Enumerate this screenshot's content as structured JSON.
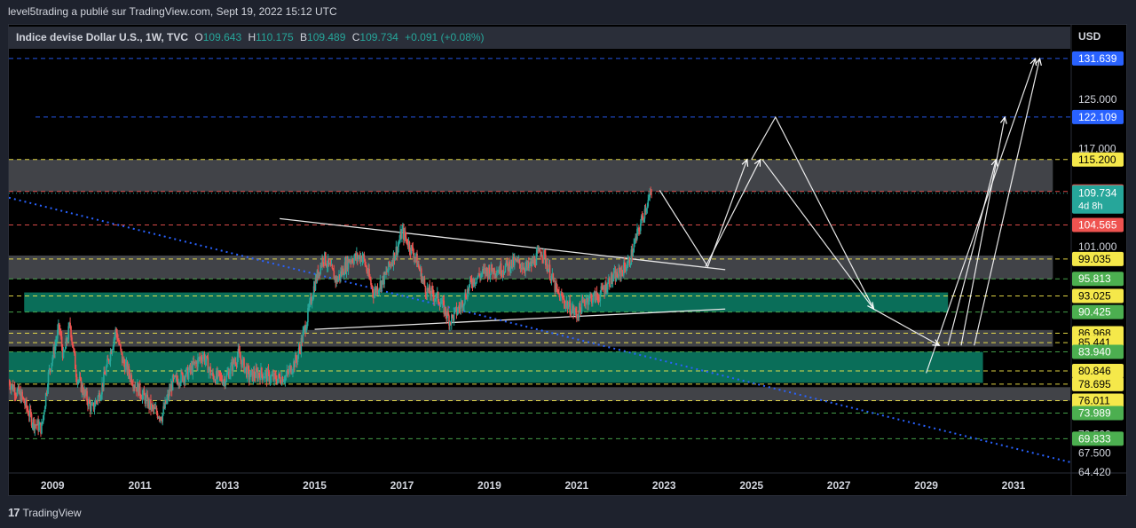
{
  "header": {
    "publisher_line": "level5trading a publié sur TradingView.com, Sept 19, 2022 15:12 UTC"
  },
  "legend": {
    "symbol": "Indice devise Dollar U.S., 1W, TVC",
    "open_label": "O",
    "open": "109.643",
    "high_label": "H",
    "high": "110.175",
    "low_label": "B",
    "low": "109.489",
    "close_label": "C",
    "close": "109.734",
    "change": "+0.091 (+0.08%)"
  },
  "axis": {
    "currency": "USD"
  },
  "footer": {
    "logo_mark": "17",
    "brand": "TradingView"
  },
  "colors": {
    "background": "#000000",
    "up": "#26a69a",
    "down": "#ef5350",
    "zone_gray": "#5d5f66",
    "zone_teal": "#0b7a63",
    "level_yellow": "#f5e84a",
    "level_green": "#4caf50",
    "level_red": "#ef5350",
    "level_blue": "#2962ff"
  },
  "chart_data": {
    "type": "candlestick",
    "interval": "1W",
    "ylim": [
      64.4,
      133.2
    ],
    "xlim": [
      2008.0,
      2032.3
    ],
    "x_ticks": [
      "2009",
      "2011",
      "2013",
      "2015",
      "2017",
      "2019",
      "2021",
      "2023",
      "2025",
      "2027",
      "2029",
      "2031"
    ],
    "y_ticks": [
      "125.000",
      "117.000",
      "101.000",
      "67.500"
    ],
    "partial_ticks": [
      "70.500",
      "64.420"
    ],
    "price_path": [
      [
        2008.0,
        79.0
      ],
      [
        2008.3,
        76.5
      ],
      [
        2008.55,
        72.5
      ],
      [
        2008.75,
        71.5
      ],
      [
        2008.9,
        80.0
      ],
      [
        2009.15,
        88.0
      ],
      [
        2009.25,
        83.0
      ],
      [
        2009.4,
        88.5
      ],
      [
        2009.55,
        80.0
      ],
      [
        2009.9,
        74.5
      ],
      [
        2010.1,
        77.5
      ],
      [
        2010.45,
        87.5
      ],
      [
        2010.6,
        82.5
      ],
      [
        2010.9,
        78.5
      ],
      [
        2011.3,
        74.5
      ],
      [
        2011.5,
        73.5
      ],
      [
        2011.75,
        79.0
      ],
      [
        2012.1,
        80.5
      ],
      [
        2012.45,
        83.5
      ],
      [
        2012.65,
        80.0
      ],
      [
        2012.95,
        79.5
      ],
      [
        2013.25,
        83.5
      ],
      [
        2013.5,
        80.0
      ],
      [
        2013.75,
        80.5
      ],
      [
        2014.1,
        79.5
      ],
      [
        2014.35,
        80.0
      ],
      [
        2014.6,
        83.0
      ],
      [
        2014.8,
        88.5
      ],
      [
        2015.0,
        95.0
      ],
      [
        2015.2,
        99.5
      ],
      [
        2015.5,
        95.5
      ],
      [
        2015.8,
        99.0
      ],
      [
        2016.1,
        99.5
      ],
      [
        2016.35,
        93.5
      ],
      [
        2016.6,
        96.0
      ],
      [
        2016.9,
        101.0
      ],
      [
        2017.0,
        103.5
      ],
      [
        2017.3,
        99.5
      ],
      [
        2017.55,
        94.0
      ],
      [
        2017.85,
        92.5
      ],
      [
        2018.1,
        89.0
      ],
      [
        2018.35,
        91.5
      ],
      [
        2018.6,
        95.5
      ],
      [
        2018.9,
        97.0
      ],
      [
        2019.3,
        97.5
      ],
      [
        2019.6,
        98.5
      ],
      [
        2019.9,
        97.5
      ],
      [
        2020.2,
        100.5
      ],
      [
        2020.35,
        97.5
      ],
      [
        2020.55,
        93.5
      ],
      [
        2020.8,
        91.5
      ],
      [
        2021.0,
        90.0
      ],
      [
        2021.2,
        92.5
      ],
      [
        2021.5,
        93.0
      ],
      [
        2021.75,
        95.5
      ],
      [
        2021.95,
        96.5
      ],
      [
        2022.2,
        98.5
      ],
      [
        2022.45,
        104.5
      ],
      [
        2022.6,
        108.0
      ],
      [
        2022.72,
        109.73
      ]
    ],
    "zones": [
      {
        "kind": "gray",
        "from": 110.013,
        "to": 115.2,
        "x_end": 2031.9
      },
      {
        "kind": "gray",
        "from": 95.813,
        "to": 99.6,
        "x_end": 2031.9
      },
      {
        "kind": "teal",
        "from": 90.425,
        "to": 93.6,
        "x_start": 2008.35,
        "x_end": 2029.5
      },
      {
        "kind": "gray",
        "from": 84.8,
        "to": 87.5,
        "x_end": 2031.9
      },
      {
        "kind": "teal",
        "from": 78.9,
        "to": 83.94,
        "x_end": 2030.3
      },
      {
        "kind": "gray",
        "from": 76.011,
        "to": 78.2,
        "x_end": 2032.3
      }
    ],
    "levels": [
      {
        "value": 131.639,
        "label": "131.639",
        "color": "blue",
        "badge_text": "#ffffff"
      },
      {
        "value": 122.109,
        "label": "122.109",
        "color": "blue",
        "badge_text": "#ffffff"
      },
      {
        "value": 115.2,
        "label": "115.200",
        "color": "yellow",
        "badge_text": "#000000"
      },
      {
        "value": 110.013,
        "label": "110.013",
        "color": "red",
        "badge_text": "#ffffff"
      },
      {
        "value": 104.565,
        "label": "104.565",
        "color": "red",
        "badge_text": "#ffffff"
      },
      {
        "value": 99.035,
        "label": "99.035",
        "color": "yellow",
        "badge_text": "#000000"
      },
      {
        "value": 95.813,
        "label": "95.813",
        "color": "green",
        "badge_text": "#ffffff"
      },
      {
        "value": 93.025,
        "label": "93.025",
        "color": "yellow",
        "badge_text": "#000000"
      },
      {
        "value": 90.425,
        "label": "90.425",
        "color": "green",
        "badge_text": "#ffffff"
      },
      {
        "value": 86.968,
        "label": "86.968",
        "color": "yellow",
        "badge_text": "#000000"
      },
      {
        "value": 85.441,
        "label": "85.441",
        "color": "yellow",
        "badge_text": "#000000"
      },
      {
        "value": 83.94,
        "label": "83.940",
        "color": "green",
        "badge_text": "#ffffff"
      },
      {
        "value": 80.846,
        "label": "80.846",
        "color": "yellow",
        "badge_text": "#000000"
      },
      {
        "value": 78.695,
        "label": "78.695",
        "color": "yellow",
        "badge_text": "#000000"
      },
      {
        "value": 76.011,
        "label": "76.011",
        "color": "yellow",
        "badge_text": "#000000"
      },
      {
        "value": 73.989,
        "label": "73.989",
        "color": "green",
        "badge_text": "#ffffff"
      },
      {
        "value": 69.833,
        "label": "69.833",
        "color": "green",
        "badge_text": "#ffffff"
      }
    ],
    "current_price": {
      "value": 109.734,
      "label": "109.734",
      "countdown": "4d 8h"
    },
    "trendlines": [
      {
        "style": "solid",
        "color": "white",
        "points": [
          [
            2014.2,
            105.6
          ],
          [
            2024.4,
            97.3
          ]
        ]
      },
      {
        "style": "solid",
        "color": "white",
        "points": [
          [
            2015.0,
            87.6
          ],
          [
            2024.4,
            90.9
          ]
        ]
      },
      {
        "style": "dotted",
        "color": "blue",
        "points": [
          [
            2008.0,
            109.0
          ],
          [
            2032.3,
            66.0
          ]
        ]
      }
    ],
    "projections": [
      {
        "points": [
          [
            2022.9,
            110.2
          ],
          [
            2024.0,
            97.8
          ],
          [
            2024.9,
            115.2
          ]
        ]
      },
      {
        "points": [
          [
            2023.95,
            97.8
          ],
          [
            2025.2,
            115.2
          ]
        ]
      },
      {
        "points": [
          [
            2025.0,
            115.2
          ],
          [
            2025.55,
            122.1
          ],
          [
            2027.8,
            90.9
          ],
          [
            2029.3,
            85.0
          ]
        ]
      },
      {
        "points": [
          [
            2025.25,
            115.2
          ],
          [
            2027.8,
            90.9
          ]
        ]
      },
      {
        "points": [
          [
            2029.0,
            80.5
          ],
          [
            2031.5,
            131.6
          ]
        ]
      },
      {
        "points": [
          [
            2029.8,
            85.0
          ],
          [
            2030.8,
            122.1
          ]
        ]
      },
      {
        "points": [
          [
            2030.1,
            85.0
          ],
          [
            2031.6,
            131.6
          ]
        ]
      },
      {
        "points": [
          [
            2029.5,
            85.0
          ],
          [
            2030.6,
            115.2
          ]
        ]
      }
    ]
  }
}
